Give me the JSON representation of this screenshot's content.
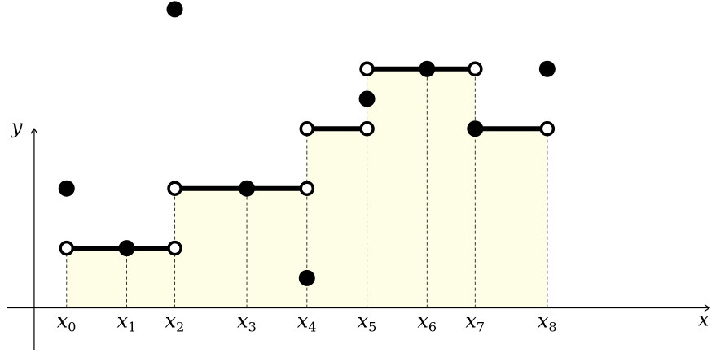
{
  "chart_data": {
    "type": "step",
    "xlabel": "x",
    "ylabel": "y",
    "xlim": [
      -1,
      10.7
    ],
    "ylim": [
      -0.7,
      5.1
    ],
    "grid": false,
    "x_ticks": [
      {
        "value": 0,
        "main": "x",
        "sub": "0"
      },
      {
        "value": 1,
        "main": "x",
        "sub": "1"
      },
      {
        "value": 1.8,
        "main": "x",
        "sub": "2"
      },
      {
        "value": 3,
        "main": "x",
        "sub": "3"
      },
      {
        "value": 4,
        "main": "x",
        "sub": "4"
      },
      {
        "value": 5,
        "main": "x",
        "sub": "5"
      },
      {
        "value": 6,
        "main": "x",
        "sub": "6"
      },
      {
        "value": 6.8,
        "main": "x",
        "sub": "7"
      },
      {
        "value": 8,
        "main": "x",
        "sub": "8"
      }
    ],
    "segments": [
      {
        "x0": 0,
        "x1": 1.8,
        "y": 1
      },
      {
        "x0": 1.8,
        "x1": 4,
        "y": 2
      },
      {
        "x0": 4,
        "x1": 5,
        "y": 3
      },
      {
        "x0": 5,
        "x1": 6.8,
        "y": 4
      },
      {
        "x0": 6.8,
        "x1": 8,
        "y": 3
      }
    ],
    "open_points": [
      {
        "x": 0,
        "y": 1
      },
      {
        "x": 1.8,
        "y": 1
      },
      {
        "x": 1.8,
        "y": 2
      },
      {
        "x": 4,
        "y": 2
      },
      {
        "x": 4,
        "y": 3
      },
      {
        "x": 5,
        "y": 3
      },
      {
        "x": 5,
        "y": 4
      },
      {
        "x": 6.8,
        "y": 4
      },
      {
        "x": 8,
        "y": 3
      }
    ],
    "filled_points": [
      {
        "x": 0,
        "y": 2
      },
      {
        "x": 1,
        "y": 1
      },
      {
        "x": 1.8,
        "y": 5
      },
      {
        "x": 3,
        "y": 2
      },
      {
        "x": 4,
        "y": 0.5
      },
      {
        "x": 5,
        "y": 3.5
      },
      {
        "x": 6,
        "y": 4
      },
      {
        "x": 6.8,
        "y": 3
      },
      {
        "x": 8,
        "y": 4
      }
    ],
    "dashed_lines": [
      {
        "x": 0,
        "top": 1
      },
      {
        "x": 1,
        "top": 1
      },
      {
        "x": 1.8,
        "top": 2
      },
      {
        "x": 3,
        "top": 2
      },
      {
        "x": 4,
        "top": 3
      },
      {
        "x": 5,
        "top": 4
      },
      {
        "x": 6,
        "top": 4
      },
      {
        "x": 6.8,
        "top": 4
      },
      {
        "x": 8,
        "top": 3
      }
    ],
    "colors": {
      "fill": "#fefee6",
      "line": "#000000",
      "dash": "#333333",
      "open_fill": "#ffffff"
    }
  }
}
